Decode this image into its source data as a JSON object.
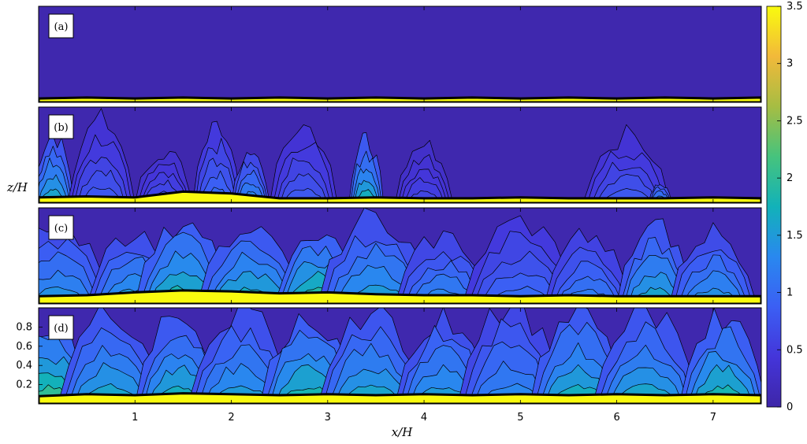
{
  "chart_data": {
    "type": "heatmap",
    "layout": "four stacked contour-field panels sharing one colorbar",
    "colormap": "parula",
    "colors": {
      "low": "#3e26a8",
      "mid": "#12b2b9",
      "high": "#f9fb0e",
      "contour": "#000000"
    },
    "xlabel": "x/H",
    "ylabel": "z/H",
    "xlim": [
      0,
      7.5
    ],
    "ylim": [
      0,
      1
    ],
    "x_ticks": [
      1,
      2,
      3,
      4,
      5,
      6,
      7
    ],
    "x_tick_labels": [
      "1",
      "2",
      "3",
      "4",
      "5",
      "6",
      "7"
    ],
    "y_ticks": [
      0.2,
      0.4,
      0.6,
      0.8
    ],
    "y_tick_labels": [
      "0.2",
      "0.4",
      "0.6",
      "0.8"
    ],
    "colorbar": {
      "min": 0,
      "max": 3.5,
      "ticks": [
        0,
        0.5,
        1,
        1.5,
        2,
        2.5,
        3,
        3.5
      ],
      "tick_labels": [
        "0",
        "0.5",
        "1",
        "1.5",
        "2",
        "2.5",
        "3",
        "3.5"
      ]
    },
    "panels": [
      {
        "label": "(a)",
        "description_level": 0.0,
        "bottom_layer": [
          0.04,
          0.05,
          0.04,
          0.05,
          0.04,
          0.05,
          0.04,
          0.05,
          0.04,
          0.05,
          0.04,
          0.05,
          0.04,
          0.05,
          0.04,
          0.05
        ],
        "plumes": []
      },
      {
        "label": "(b)",
        "bottom_layer": [
          0.06,
          0.07,
          0.06,
          0.12,
          0.1,
          0.05,
          0.05,
          0.06,
          0.05,
          0.05,
          0.06,
          0.05,
          0.05,
          0.05,
          0.06,
          0.05
        ],
        "plumes": [
          {
            "x": 0.15,
            "w": 0.22,
            "h": 0.7,
            "level": 1.6
          },
          {
            "x": 0.65,
            "w": 0.35,
            "h": 0.85,
            "level": 0.8
          },
          {
            "x": 1.3,
            "w": 0.3,
            "h": 0.55,
            "level": 0.7
          },
          {
            "x": 1.85,
            "w": 0.25,
            "h": 0.75,
            "level": 1.0
          },
          {
            "x": 2.2,
            "w": 0.2,
            "h": 0.55,
            "level": 1.3
          },
          {
            "x": 2.75,
            "w": 0.35,
            "h": 0.8,
            "level": 0.8
          },
          {
            "x": 3.4,
            "w": 0.18,
            "h": 0.65,
            "level": 1.7
          },
          {
            "x": 4.0,
            "w": 0.3,
            "h": 0.6,
            "level": 0.6
          },
          {
            "x": 6.1,
            "w": 0.45,
            "h": 0.7,
            "level": 0.8
          },
          {
            "x": 6.45,
            "w": 0.12,
            "h": 0.2,
            "level": 1.4
          }
        ]
      },
      {
        "label": "(c)",
        "bottom_layer": [
          0.08,
          0.09,
          0.12,
          0.14,
          0.13,
          0.11,
          0.12,
          0.1,
          0.09,
          0.09,
          0.08,
          0.09,
          0.08,
          0.08,
          0.08,
          0.08
        ],
        "plumes": [
          {
            "x": 0.2,
            "w": 0.55,
            "h": 0.8,
            "level": 1.4
          },
          {
            "x": 1.0,
            "w": 0.5,
            "h": 0.75,
            "level": 1.5
          },
          {
            "x": 1.5,
            "w": 0.5,
            "h": 0.85,
            "level": 1.8
          },
          {
            "x": 2.2,
            "w": 0.55,
            "h": 0.8,
            "level": 1.7
          },
          {
            "x": 2.9,
            "w": 0.45,
            "h": 0.75,
            "level": 1.9
          },
          {
            "x": 3.5,
            "w": 0.6,
            "h": 0.9,
            "level": 1.5
          },
          {
            "x": 4.2,
            "w": 0.5,
            "h": 0.7,
            "level": 1.3
          },
          {
            "x": 5.0,
            "w": 0.6,
            "h": 0.85,
            "level": 1.0
          },
          {
            "x": 5.7,
            "w": 0.45,
            "h": 0.7,
            "level": 1.2
          },
          {
            "x": 6.4,
            "w": 0.4,
            "h": 0.8,
            "level": 1.6
          },
          {
            "x": 7.0,
            "w": 0.45,
            "h": 0.75,
            "level": 1.4
          }
        ]
      },
      {
        "label": "(d)",
        "bottom_layer": [
          0.08,
          0.1,
          0.09,
          0.11,
          0.1,
          0.09,
          0.1,
          0.09,
          0.1,
          0.09,
          0.1,
          0.09,
          0.1,
          0.09,
          0.1,
          0.09
        ],
        "plumes": [
          {
            "x": 0.1,
            "w": 0.5,
            "h": 0.85,
            "level": 2.0
          },
          {
            "x": 0.75,
            "w": 0.55,
            "h": 0.95,
            "level": 1.6
          },
          {
            "x": 1.45,
            "w": 0.45,
            "h": 0.9,
            "level": 1.7
          },
          {
            "x": 2.1,
            "w": 0.55,
            "h": 0.95,
            "level": 1.5
          },
          {
            "x": 2.8,
            "w": 0.5,
            "h": 0.9,
            "level": 1.8
          },
          {
            "x": 3.45,
            "w": 0.55,
            "h": 0.95,
            "level": 1.6
          },
          {
            "x": 4.2,
            "w": 0.5,
            "h": 0.9,
            "level": 1.5
          },
          {
            "x": 4.9,
            "w": 0.55,
            "h": 1.0,
            "level": 1.3
          },
          {
            "x": 5.6,
            "w": 0.5,
            "h": 0.95,
            "level": 1.7
          },
          {
            "x": 6.3,
            "w": 0.55,
            "h": 0.95,
            "level": 1.6
          },
          {
            "x": 7.1,
            "w": 0.45,
            "h": 0.9,
            "level": 1.8
          }
        ]
      }
    ]
  }
}
